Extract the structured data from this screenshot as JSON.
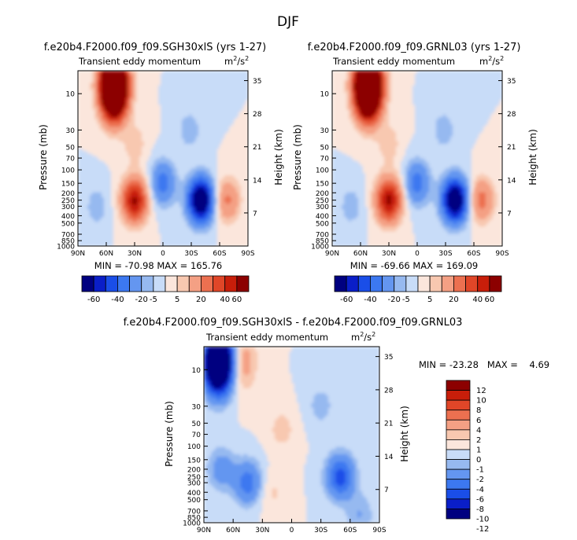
{
  "figure": {
    "title": "DJF"
  },
  "axes": {
    "x_ticks": [
      "90N",
      "60N",
      "30N",
      "0",
      "30S",
      "60S",
      "90S"
    ],
    "p_ticks": [
      "10",
      "30",
      "50",
      "70",
      "100",
      "150",
      "200",
      "250",
      "300",
      "400",
      "500",
      "700",
      "850",
      "1000"
    ],
    "p_ticks_top": [
      "10",
      "30",
      "50",
      "70",
      "100",
      "150",
      "200",
      "250",
      "300",
      "400",
      "500",
      "700",
      "850",
      "1000"
    ],
    "h_ticks": [
      "35",
      "28",
      "21",
      "14",
      "7"
    ],
    "ylabel": "Pressure (mb)",
    "y2label": "Height (km)"
  },
  "colors": {
    "top_scale": [
      "#000080",
      "#0a1ec8",
      "#1a4ee8",
      "#3c78f0",
      "#6496f0",
      "#96b9f0",
      "#c8dcf8",
      "#fbe6dc",
      "#f8c8b0",
      "#f4a084",
      "#ec7050",
      "#e04628",
      "#c81e0a",
      "#8c0000"
    ],
    "diff_scale": [
      "#000080",
      "#0a1ec8",
      "#1a4ee8",
      "#3c78f0",
      "#6496f0",
      "#96b9f0",
      "#c8dcf8",
      "#fbe6dc",
      "#f8c8b0",
      "#f4a084",
      "#ec7050",
      "#e04628",
      "#c81e0a",
      "#8c0000"
    ]
  },
  "chart_data": [
    {
      "type": "heatmap",
      "id": "panel-left",
      "title": "f.e20b4.F2000.f09_f09.SGH30xlS (yrs 1-27)",
      "subtitle": "Transient eddy momentum",
      "units": "m",
      "units_sup": "2",
      "units_tail": "/s",
      "units_tail_sup": "2",
      "minmax": "MIN = -70.98   MAX = 165.76",
      "xlim": [
        90,
        -90
      ],
      "ylim_pressure": [
        1000,
        5
      ],
      "colorbar_labels": [
        "-60",
        "-40",
        "-20",
        "-5",
        "5",
        "20",
        "40",
        "60"
      ],
      "levels": [
        -60,
        -50,
        -40,
        -30,
        -20,
        -10,
        -5,
        0,
        5,
        10,
        20,
        30,
        40,
        50,
        60
      ],
      "features": [
        {
          "lat": 52,
          "p": 8,
          "value": 165.76
        },
        {
          "lat": 30,
          "p": 250,
          "value": 52
        },
        {
          "lat": -40,
          "p": 250,
          "value": -70.98
        },
        {
          "lat": 0,
          "p": 150,
          "value": -25
        },
        {
          "lat": -68,
          "p": 250,
          "value": 22
        },
        {
          "lat": 70,
          "p": 300,
          "value": -8
        },
        {
          "lat": 30,
          "p": 45,
          "value": 8
        },
        {
          "lat": -28,
          "p": 30,
          "value": -8
        }
      ]
    },
    {
      "type": "heatmap",
      "id": "panel-right",
      "title": "f.e20b4.F2000.f09_f09.GRNL03 (yrs 1-27)",
      "subtitle": "Transient eddy momentum",
      "units": "m",
      "units_sup": "2",
      "units_tail": "/s",
      "units_tail_sup": "2",
      "minmax": "MIN = -69.66   MAX = 169.09",
      "xlim": [
        90,
        -90
      ],
      "ylim_pressure": [
        1000,
        5
      ],
      "colorbar_labels": [
        "-60",
        "-40",
        "-20",
        "-5",
        "5",
        "20",
        "40",
        "60"
      ],
      "levels": [
        -60,
        -50,
        -40,
        -30,
        -20,
        -10,
        -5,
        0,
        5,
        10,
        20,
        30,
        40,
        50,
        60
      ],
      "features": [
        {
          "lat": 52,
          "p": 8,
          "value": 169.09
        },
        {
          "lat": 30,
          "p": 250,
          "value": 54
        },
        {
          "lat": -40,
          "p": 250,
          "value": -69.66
        },
        {
          "lat": 0,
          "p": 150,
          "value": -25
        },
        {
          "lat": -68,
          "p": 250,
          "value": 24
        },
        {
          "lat": 70,
          "p": 300,
          "value": -8
        },
        {
          "lat": 30,
          "p": 45,
          "value": 8
        },
        {
          "lat": -28,
          "p": 30,
          "value": -8
        }
      ]
    },
    {
      "type": "heatmap",
      "id": "panel-diff",
      "title": "f.e20b4.F2000.f09_f09.SGH30xlS - f.e20b4.F2000.f09_f09.GRNL03",
      "subtitle": "Transient eddy momentum",
      "units": "m",
      "units_sup": "2",
      "units_tail": "/s",
      "units_tail_sup": "2",
      "minmax": "MIN = -23.28   MAX =    4.69",
      "xlim": [
        90,
        -90
      ],
      "ylim_pressure": [
        1000,
        5
      ],
      "colorbar_labels": [
        "12",
        "10",
        "8",
        "6",
        "4",
        "2",
        "1",
        "0",
        "-1",
        "-2",
        "-4",
        "-6",
        "-8",
        "-10",
        "-12"
      ],
      "levels": [
        -12,
        -10,
        -8,
        -6,
        -4,
        -2,
        -1,
        0,
        1,
        2,
        4,
        6,
        8,
        10,
        12
      ],
      "features": [
        {
          "lat": 75,
          "p": 8,
          "value": -23.28
        },
        {
          "lat": 72,
          "p": 200,
          "value": -3
        },
        {
          "lat": 45,
          "p": 300,
          "value": -5
        },
        {
          "lat": -50,
          "p": 250,
          "value": -7
        },
        {
          "lat": 50,
          "p": 8,
          "value": 3
        },
        {
          "lat": 10,
          "p": 60,
          "value": 1.5
        },
        {
          "lat": -30,
          "p": 30,
          "value": -1.5
        },
        {
          "lat": -70,
          "p": 800,
          "value": -2
        },
        {
          "lat": 20,
          "p": 400,
          "value": 1.2
        }
      ]
    }
  ]
}
